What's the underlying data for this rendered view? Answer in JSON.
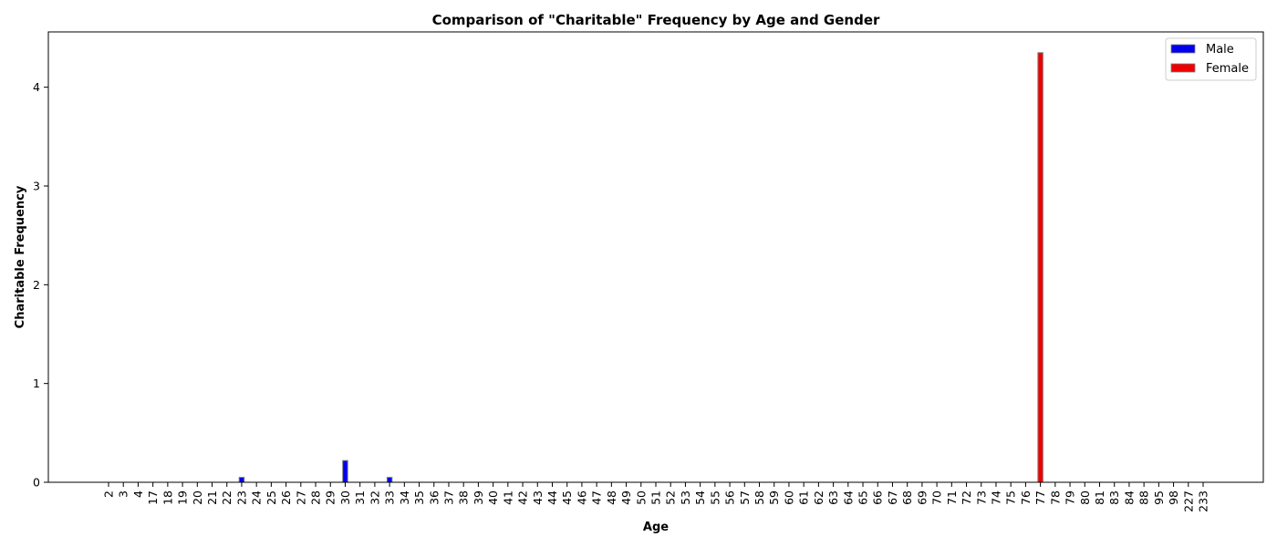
{
  "chart_data": {
    "type": "bar",
    "title": "Comparison of \"Charitable\" Frequency by Age and Gender",
    "xlabel": "Age",
    "ylabel": "Charitable Frequency",
    "categories": [
      "2",
      "3",
      "4",
      "17",
      "18",
      "19",
      "20",
      "21",
      "22",
      "23",
      "24",
      "25",
      "26",
      "27",
      "28",
      "29",
      "30",
      "31",
      "32",
      "33",
      "34",
      "35",
      "36",
      "37",
      "38",
      "39",
      "40",
      "41",
      "42",
      "43",
      "44",
      "45",
      "46",
      "47",
      "48",
      "49",
      "50",
      "51",
      "52",
      "53",
      "54",
      "55",
      "56",
      "57",
      "58",
      "59",
      "60",
      "61",
      "62",
      "63",
      "64",
      "65",
      "66",
      "67",
      "68",
      "69",
      "70",
      "71",
      "72",
      "73",
      "74",
      "75",
      "76",
      "77",
      "78",
      "79",
      "80",
      "81",
      "83",
      "84",
      "88",
      "95",
      "98",
      "227",
      "233"
    ],
    "series": [
      {
        "name": "Male",
        "color": "#0000ee",
        "values": [
          0,
          0,
          0,
          0,
          0,
          0,
          0,
          0,
          0,
          0.05,
          0,
          0,
          0,
          0,
          0,
          0,
          0.22,
          0,
          0,
          0.05,
          0,
          0,
          0,
          0,
          0,
          0,
          0,
          0,
          0,
          0,
          0,
          0,
          0,
          0,
          0,
          0,
          0,
          0,
          0,
          0,
          0,
          0,
          0,
          0,
          0,
          0,
          0,
          0,
          0,
          0,
          0,
          0,
          0,
          0,
          0,
          0,
          0,
          0,
          0,
          0,
          0,
          0,
          0,
          0,
          0,
          0,
          0,
          0,
          0,
          0,
          0,
          0,
          0,
          0,
          0
        ]
      },
      {
        "name": "Female",
        "color": "#ee0000",
        "values": [
          0,
          0,
          0,
          0,
          0,
          0,
          0,
          0,
          0,
          0,
          0,
          0,
          0,
          0,
          0,
          0,
          0,
          0,
          0,
          0,
          0,
          0,
          0,
          0,
          0,
          0,
          0,
          0,
          0,
          0,
          0,
          0,
          0,
          0,
          0,
          0,
          0,
          0,
          0,
          0,
          0,
          0,
          0,
          0,
          0,
          0,
          0,
          0,
          0,
          0,
          0,
          0,
          0,
          0,
          0,
          0,
          0,
          0,
          0,
          0,
          0,
          0,
          0,
          4.35,
          0,
          0,
          0,
          0,
          0,
          0,
          0,
          0,
          0,
          0,
          0
        ]
      }
    ],
    "ylim": [
      0,
      4.56
    ],
    "yticks": [
      "0",
      "1",
      "2",
      "3",
      "4"
    ],
    "legend_position": "top-right",
    "grid": false
  }
}
